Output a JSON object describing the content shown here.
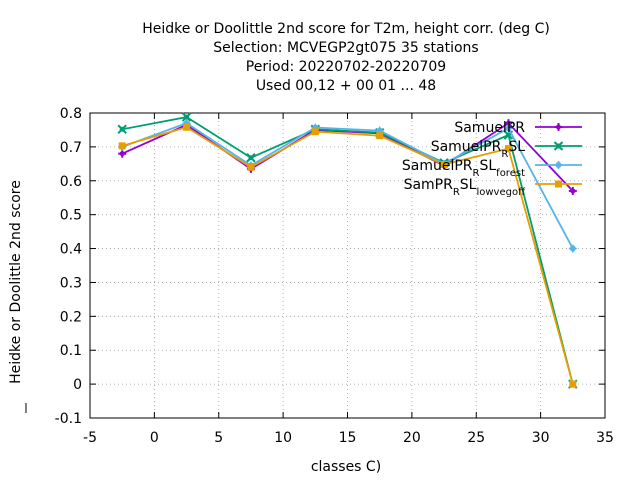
{
  "chart_data": {
    "type": "line",
    "title_lines": [
      "Heidke or Doolittle 2nd score  for T2m, height corr. (deg C)",
      "Selection: MCVEGP2gt075     35 stations",
      "Period: 20220702-20220709",
      "Used  00,12  + 00 01 ... 48"
    ],
    "xlabel": "classes C)",
    "ylabel": "Heidke or Doolittle 2nd score",
    "xlim": [
      -5,
      35
    ],
    "ylim": [
      -0.1,
      0.8
    ],
    "xticks": [
      -5,
      0,
      5,
      10,
      15,
      20,
      25,
      30,
      35
    ],
    "yticks": [
      -0.1,
      0,
      0.1,
      0.2,
      0.3,
      0.4,
      0.5,
      0.6,
      0.7,
      0.8
    ],
    "xtick_labels": [
      "-5",
      "0",
      "5",
      "10",
      "15",
      "20",
      "25",
      "30",
      "35"
    ],
    "ytick_labels": [
      "-0.1",
      "0",
      "0.1",
      "0.2",
      "0.3",
      "0.4",
      "0.5",
      "0.6",
      "0.7",
      "0.8"
    ],
    "grid": true,
    "legend_position": "top-right",
    "x": [
      -2.5,
      2.5,
      7.5,
      12.5,
      17.5,
      22.5,
      27.5,
      32.5
    ],
    "series": [
      {
        "name": "SamuelPR",
        "legend_parts": [
          [
            "SamuelPR",
            ""
          ]
        ],
        "color": "#9400d3",
        "marker": "plus",
        "values": [
          0.68,
          0.765,
          0.635,
          0.75,
          0.74,
          0.645,
          0.77,
          0.57
        ]
      },
      {
        "name": "SamuelPR_R SL",
        "legend_parts": [
          [
            "SamuelPR",
            ""
          ],
          [
            "R",
            "sub"
          ],
          [
            "SL",
            ""
          ]
        ],
        "color": "#009e73",
        "marker": "x",
        "values": [
          0.752,
          0.788,
          0.668,
          0.752,
          0.742,
          0.653,
          0.735,
          0.0
        ]
      },
      {
        "name": "SamuelPR_R SL_forest",
        "legend_parts": [
          [
            "SamuelPR",
            ""
          ],
          [
            "R",
            "sub"
          ],
          [
            "SL",
            ""
          ],
          [
            "forest",
            "sub"
          ]
        ],
        "color": "#56b4e9",
        "marker": "star",
        "values": [
          0.7,
          0.77,
          0.645,
          0.757,
          0.748,
          0.65,
          0.755,
          0.4
        ]
      },
      {
        "name": "SamPR_R SL_lowvegoff",
        "legend_parts": [
          [
            "SamPR",
            ""
          ],
          [
            "R",
            "sub"
          ],
          [
            "SL",
            ""
          ],
          [
            "lowvegoff",
            "sub"
          ]
        ],
        "color": "#e69f00",
        "marker": "square",
        "values": [
          0.703,
          0.758,
          0.64,
          0.745,
          0.733,
          0.648,
          0.695,
          0.0
        ]
      }
    ]
  }
}
